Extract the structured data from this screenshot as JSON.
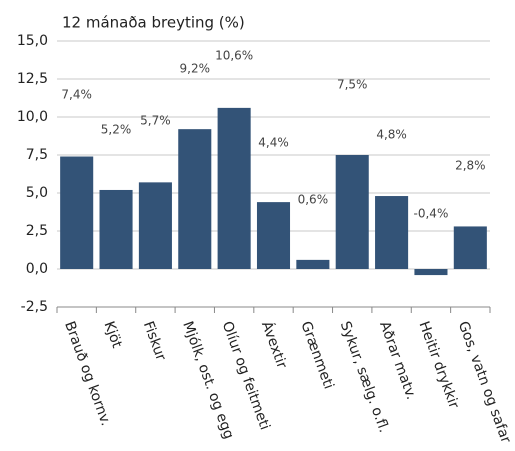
{
  "chart_data": {
    "type": "bar",
    "title": "12 mánaða breyting (%)",
    "categories": [
      "Brauð og kornv.",
      "Kjöt",
      "Fiskur",
      "Mjólk, ost. og egg",
      "Olíur og feitmeti",
      "Ávextir",
      "Grænmeti",
      "Sykur, sælg. o.fl.",
      "Aðrar matv.",
      "Heitir drykkir",
      "Gos, vatn og safar"
    ],
    "values": [
      7.4,
      5.2,
      5.7,
      9.2,
      10.6,
      4.4,
      0.6,
      7.5,
      4.8,
      -0.4,
      2.8
    ],
    "value_labels": [
      "7,4%",
      "5,2%",
      "5,7%",
      "9,2%",
      "10,6%",
      "4,4%",
      "0,6%",
      "7,5%",
      "4,8%",
      "-0,4%",
      "2,8%"
    ],
    "color": "#335377",
    "ylim": [
      -2.5,
      15
    ],
    "yticks": [
      {
        "value": -2.5,
        "label": "-2,5"
      },
      {
        "value": 0,
        "label": "0,0"
      },
      {
        "value": 2.5,
        "label": "2,5"
      },
      {
        "value": 5,
        "label": "5,0"
      },
      {
        "value": 7.5,
        "label": "7,5"
      },
      {
        "value": 10,
        "label": "10,0"
      },
      {
        "value": 12.5,
        "label": "12,5"
      },
      {
        "value": 15,
        "label": "15,0"
      }
    ],
    "grid": true
  }
}
